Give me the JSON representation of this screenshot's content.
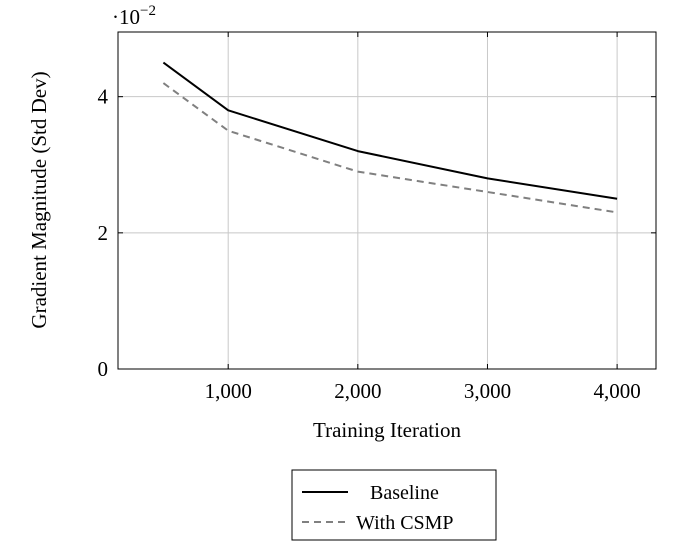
{
  "chart_data": {
    "type": "line",
    "title": "",
    "xlabel": "Training Iteration",
    "ylabel": "Gradient Magnitude (Std Dev)",
    "scale_note": "·10",
    "scale_exponent": "−2",
    "xlim": [
      150,
      4300
    ],
    "ylim": [
      0,
      4.95
    ],
    "grid": true,
    "x_ticks": [
      {
        "value": 1000,
        "label": "1,000"
      },
      {
        "value": 2000,
        "label": "2,000"
      },
      {
        "value": 3000,
        "label": "3,000"
      },
      {
        "value": 4000,
        "label": "4,000"
      }
    ],
    "y_ticks": [
      {
        "value": 0,
        "label": "0"
      },
      {
        "value": 2,
        "label": "2"
      },
      {
        "value": 4,
        "label": "4"
      }
    ],
    "legend_position": "bottom-center",
    "series": [
      {
        "name": "Baseline",
        "color": "#000000",
        "style": "solid",
        "x": [
          500,
          1000,
          2000,
          3000,
          4000
        ],
        "y": [
          4.5,
          3.8,
          3.2,
          2.8,
          2.5
        ]
      },
      {
        "name": "With CSMP",
        "color": "#808080",
        "style": "dashed",
        "x": [
          500,
          1000,
          2000,
          3000,
          4000
        ],
        "y": [
          4.2,
          3.5,
          2.9,
          2.6,
          2.3
        ]
      }
    ]
  }
}
